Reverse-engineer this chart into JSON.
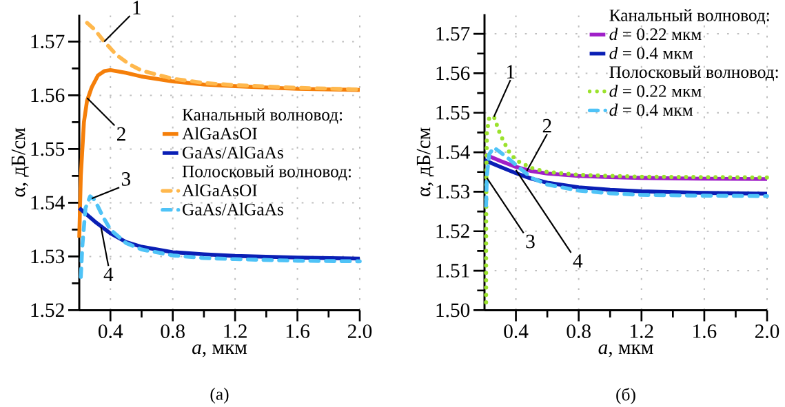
{
  "chart_data": [
    {
      "type": "line",
      "title": "(а)",
      "xlabel": "*a*, мкм",
      "ylabel": "α, дБ/см",
      "xlim": [
        0.2,
        2.0
      ],
      "ylim": [
        1.52,
        1.575
      ],
      "xticks": [
        0.4,
        0.8,
        1.2,
        1.6,
        {
          "value": 2.0,
          "label": "2.0"
        }
      ],
      "yticks": [
        1.52,
        1.53,
        1.54,
        1.55,
        1.56,
        1.57
      ],
      "grid": true,
      "legend": "right",
      "annotations": [
        "Канальный волновод:",
        "Полосковый волновод:",
        {
          "text": "1",
          "x": 0.36,
          "y": 1.57
        },
        {
          "text": "2",
          "x": 0.25,
          "y": 1.5595
        },
        {
          "text": "3",
          "x": 0.28,
          "y": 1.5408
        },
        {
          "text": "4",
          "x": 0.34,
          "y": 1.5354
        }
      ],
      "series": [
        {
          "name": "AlGaAsOI",
          "color": "#f57f0a",
          "line_style": "solid",
          "x": [
            0.2,
            0.21,
            0.23,
            0.25,
            0.28,
            0.32,
            0.36,
            0.4,
            0.5,
            0.6,
            0.8,
            1.0,
            1.2,
            1.6,
            2.0
          ],
          "values": [
            1.5335,
            1.545,
            1.555,
            1.559,
            1.5615,
            1.5637,
            1.5645,
            1.5647,
            1.5642,
            1.5635,
            1.5626,
            1.562,
            1.5617,
            1.5612,
            1.561
          ]
        },
        {
          "name": "GaAs/AlGaAs",
          "color": "#0a1fb5",
          "line_style": "solid",
          "x": [
            0.2,
            0.3,
            0.4,
            0.5,
            0.6,
            0.8,
            1.0,
            1.2,
            1.6,
            2.0
          ],
          "values": [
            1.539,
            1.5365,
            1.5343,
            1.5327,
            1.5318,
            1.5308,
            1.5304,
            1.5301,
            1.5298,
            1.5296
          ]
        },
        {
          "name": "AlGaAsOI",
          "color": "#ffb84d",
          "line_style": "dashed",
          "x": [
            0.25,
            0.3,
            0.36,
            0.44,
            0.52,
            0.6,
            0.8,
            1.0,
            1.2,
            1.6,
            2.0
          ],
          "values": [
            1.5735,
            1.5722,
            1.57,
            1.5675,
            1.5658,
            1.5646,
            1.5631,
            1.5623,
            1.5619,
            1.5614,
            1.5611
          ]
        },
        {
          "name": "GaAs/AlGaAs",
          "color": "#4fc3f7",
          "line_style": "dashed",
          "x": [
            0.21,
            0.22,
            0.24,
            0.27,
            0.3,
            0.35,
            0.4,
            0.5,
            0.6,
            0.8,
            1.0,
            1.2,
            1.6,
            2.0
          ],
          "values": [
            1.5262,
            1.532,
            1.539,
            1.5412,
            1.5405,
            1.5375,
            1.535,
            1.5325,
            1.5313,
            1.5302,
            1.5297,
            1.5295,
            1.5292,
            1.5291
          ]
        }
      ]
    },
    {
      "type": "line",
      "title": "(б)",
      "xlabel": "*a*, мкм",
      "ylabel": "α, дБ/см",
      "xlim": [
        0.2,
        2.0
      ],
      "ylim": [
        1.5,
        1.575
      ],
      "xticks": [
        0.4,
        0.8,
        1.2,
        1.6,
        {
          "value": 2.0,
          "label": "2.0"
        }
      ],
      "yticks": [
        {
          "value": 1.5,
          "label": "1.50"
        },
        1.51,
        1.52,
        1.53,
        1.54,
        1.55,
        1.56,
        1.57
      ],
      "grid": true,
      "legend": "top right",
      "annotations": [
        "Канальный волновод:",
        "Полосковый волновод:",
        {
          "text": "1",
          "x": 0.26,
          "y": 1.549
        },
        {
          "text": "2",
          "x": 0.47,
          "y": 1.5353
        },
        {
          "text": "3",
          "x": 0.215,
          "y": 1.5335
        },
        {
          "text": "4",
          "x": 0.4,
          "y": 1.5355
        }
      ],
      "series": [
        {
          "name": "*d* = 0.22 мкм",
          "color": "#a020c8",
          "line_style": "solid",
          "x": [
            0.2,
            0.3,
            0.4,
            0.5,
            0.6,
            0.8,
            1.0,
            1.2,
            1.6,
            2.0
          ],
          "values": [
            1.5395,
            1.5378,
            1.5363,
            1.5352,
            1.5346,
            1.534,
            1.5337,
            1.5335,
            1.5333,
            1.5332
          ]
        },
        {
          "name": "*d* = 0.4 мкм",
          "color": "#0a1fb5",
          "line_style": "solid",
          "x": [
            0.2,
            0.3,
            0.4,
            0.5,
            0.6,
            0.8,
            1.0,
            1.2,
            1.6,
            2.0
          ],
          "values": [
            1.538,
            1.5363,
            1.5347,
            1.5333,
            1.5323,
            1.5311,
            1.5305,
            1.5301,
            1.5297,
            1.5295
          ]
        },
        {
          "name": "*d* = 0.22 мкм",
          "color": "#9be22c",
          "line_style": "dotted",
          "x": [
            0.21,
            0.21,
            0.212,
            0.215,
            0.23,
            0.26,
            0.3,
            0.35,
            0.4,
            0.5,
            0.6,
            0.8,
            1.0,
            1.2,
            1.6,
            2.0
          ],
          "values": [
            1.502,
            1.52,
            1.535,
            1.545,
            1.5488,
            1.549,
            1.5445,
            1.5405,
            1.538,
            1.536,
            1.535,
            1.5343,
            1.534,
            1.5338,
            1.5337,
            1.5336
          ]
        },
        {
          "name": "*d* = 0.4 мкм",
          "color": "#4fc3f7",
          "line_style": "dashed",
          "x": [
            0.21,
            0.215,
            0.23,
            0.26,
            0.3,
            0.35,
            0.4,
            0.5,
            0.6,
            0.8,
            1.0,
            1.2,
            1.6,
            2.0
          ],
          "values": [
            1.5265,
            1.534,
            1.5395,
            1.5412,
            1.54,
            1.5385,
            1.5368,
            1.5335,
            1.5318,
            1.5303,
            1.5296,
            1.5292,
            1.529,
            1.5289
          ]
        }
      ]
    }
  ]
}
